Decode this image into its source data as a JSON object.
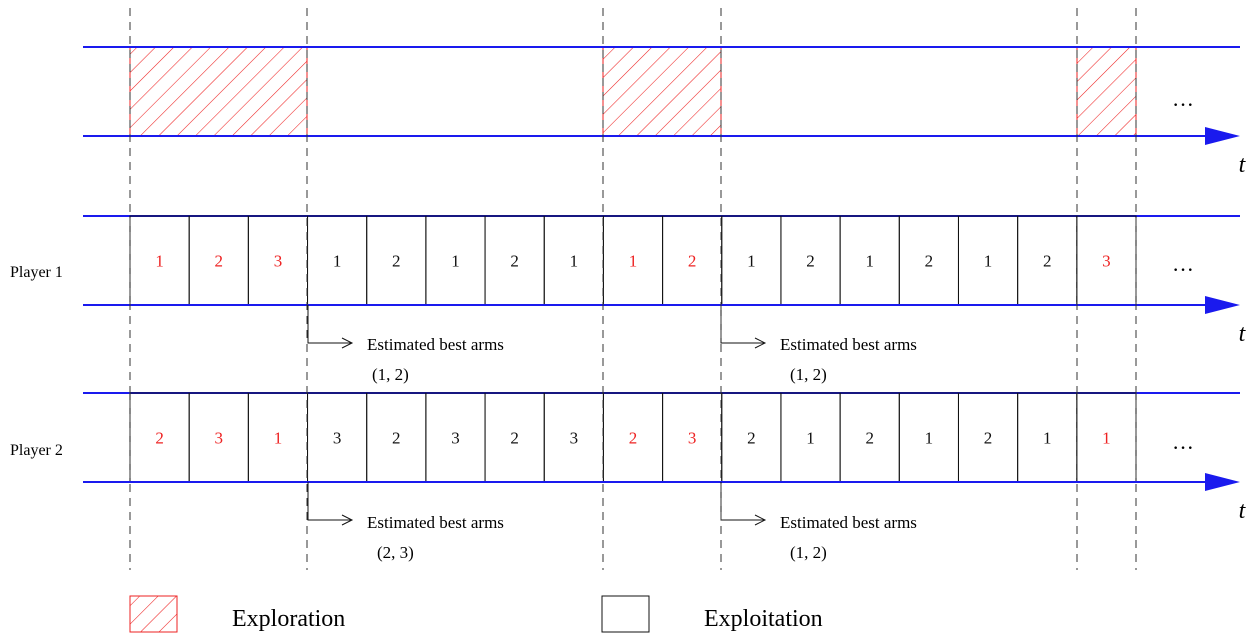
{
  "colors": {
    "timeline": "#1a1aee",
    "exploration": "#ee2222",
    "exploitation": "#111111",
    "divider": "#333333"
  },
  "top_band": {
    "segments": [
      "exploration",
      "exploitation",
      "exploration",
      "exploitation",
      "exploration"
    ],
    "continuation": "···",
    "time_label": "t"
  },
  "players": [
    {
      "label": "Player 1",
      "arms": [
        {
          "arm": "1",
          "phase": "exploration"
        },
        {
          "arm": "2",
          "phase": "exploration"
        },
        {
          "arm": "3",
          "phase": "exploration"
        },
        {
          "arm": "1",
          "phase": "exploitation"
        },
        {
          "arm": "2",
          "phase": "exploitation"
        },
        {
          "arm": "1",
          "phase": "exploitation"
        },
        {
          "arm": "2",
          "phase": "exploitation"
        },
        {
          "arm": "1",
          "phase": "exploitation"
        },
        {
          "arm": "1",
          "phase": "exploration"
        },
        {
          "arm": "2",
          "phase": "exploration"
        },
        {
          "arm": "1",
          "phase": "exploitation"
        },
        {
          "arm": "2",
          "phase": "exploitation"
        },
        {
          "arm": "1",
          "phase": "exploitation"
        },
        {
          "arm": "2",
          "phase": "exploitation"
        },
        {
          "arm": "1",
          "phase": "exploitation"
        },
        {
          "arm": "2",
          "phase": "exploitation"
        },
        {
          "arm": "3",
          "phase": "exploration"
        }
      ],
      "continuation": "···",
      "time_label": "t",
      "estimates": [
        {
          "text": "Estimated best arms",
          "arms": "(1, 2)"
        },
        {
          "text": "Estimated best arms",
          "arms": "(1, 2)"
        }
      ]
    },
    {
      "label": "Player 2",
      "arms": [
        {
          "arm": "2",
          "phase": "exploration"
        },
        {
          "arm": "3",
          "phase": "exploration"
        },
        {
          "arm": "1",
          "phase": "exploration"
        },
        {
          "arm": "3",
          "phase": "exploitation"
        },
        {
          "arm": "2",
          "phase": "exploitation"
        },
        {
          "arm": "3",
          "phase": "exploitation"
        },
        {
          "arm": "2",
          "phase": "exploitation"
        },
        {
          "arm": "3",
          "phase": "exploitation"
        },
        {
          "arm": "2",
          "phase": "exploration"
        },
        {
          "arm": "3",
          "phase": "exploration"
        },
        {
          "arm": "2",
          "phase": "exploitation"
        },
        {
          "arm": "1",
          "phase": "exploitation"
        },
        {
          "arm": "2",
          "phase": "exploitation"
        },
        {
          "arm": "1",
          "phase": "exploitation"
        },
        {
          "arm": "2",
          "phase": "exploitation"
        },
        {
          "arm": "1",
          "phase": "exploitation"
        },
        {
          "arm": "1",
          "phase": "exploration"
        }
      ],
      "continuation": "···",
      "time_label": "t",
      "estimates": [
        {
          "text": "Estimated best arms",
          "arms": "(2, 3)"
        },
        {
          "text": "Estimated best arms",
          "arms": "(1, 2)"
        }
      ]
    }
  ],
  "legend": {
    "exploration": "Exploration",
    "exploitation": "Exploitation"
  }
}
